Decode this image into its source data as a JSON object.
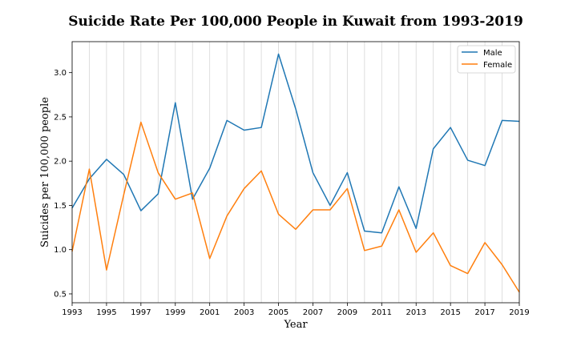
{
  "chart_data": {
    "type": "line",
    "title": "Suicide Rate Per 100,000 People in Kuwait from 1993-2019",
    "xlabel": "Year",
    "ylabel": "Suicides per 100,000 people",
    "xlim": [
      1993,
      2019
    ],
    "ylim": [
      0.4,
      3.35
    ],
    "x_ticks": [
      1993,
      1995,
      1997,
      1999,
      2001,
      2003,
      2005,
      2007,
      2009,
      2011,
      2013,
      2015,
      2017,
      2019
    ],
    "y_ticks": [
      0.5,
      1.0,
      1.5,
      2.0,
      2.5,
      3.0
    ],
    "x_grid": "vertical lines at every year",
    "legend_position": "top-right",
    "x": [
      1993,
      1994,
      1995,
      1996,
      1997,
      1998,
      1999,
      2000,
      2001,
      2002,
      2003,
      2004,
      2005,
      2006,
      2007,
      2008,
      2009,
      2010,
      2011,
      2012,
      2013,
      2014,
      2015,
      2016,
      2017,
      2018,
      2019
    ],
    "series": [
      {
        "name": "Male",
        "color": "#1f77b4",
        "values": [
          1.47,
          1.8,
          2.02,
          1.85,
          1.44,
          1.63,
          2.66,
          1.57,
          1.92,
          2.46,
          2.35,
          2.38,
          3.21,
          2.59,
          1.87,
          1.5,
          1.87,
          1.21,
          1.19,
          1.71,
          1.24,
          2.14,
          2.38,
          2.01,
          1.95,
          2.46,
          2.45
        ]
      },
      {
        "name": "Female",
        "color": "#ff7f0e",
        "values": [
          0.98,
          1.91,
          0.77,
          1.62,
          2.44,
          1.87,
          1.57,
          1.64,
          0.9,
          1.38,
          1.69,
          1.89,
          1.4,
          1.23,
          1.45,
          1.45,
          1.69,
          0.99,
          1.04,
          1.45,
          0.97,
          1.19,
          0.82,
          0.73,
          1.08,
          0.83,
          0.52
        ]
      }
    ]
  }
}
